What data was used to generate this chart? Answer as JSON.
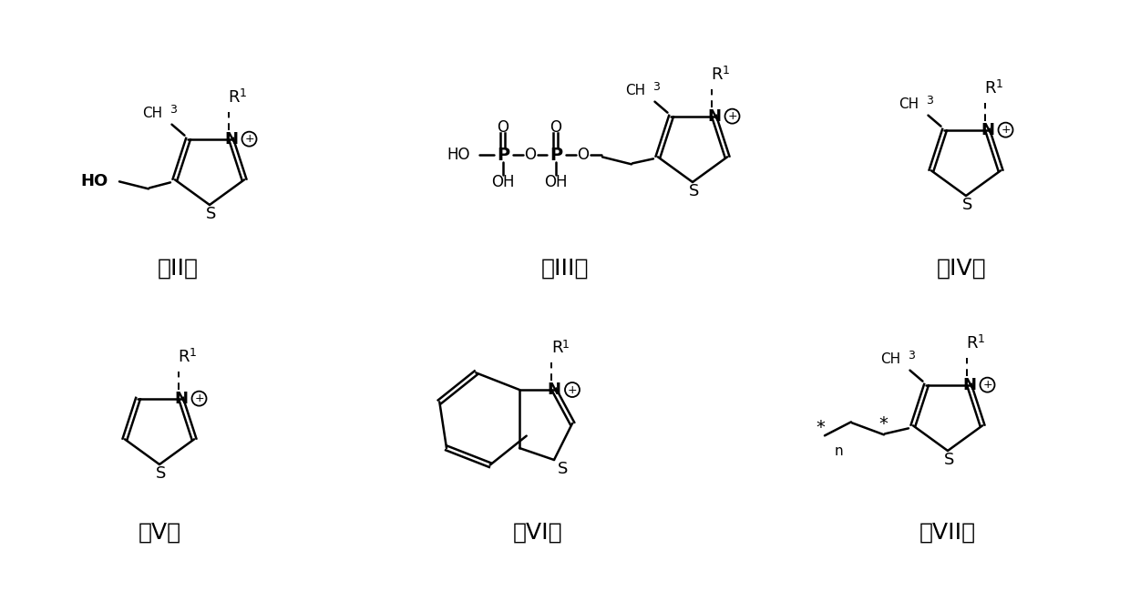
{
  "bg_color": "#ffffff",
  "lc": "#000000",
  "lw": 1.8,
  "labels": [
    "（II）",
    "（III）",
    "（IV）",
    "（V）",
    "（VI）",
    "（VII）"
  ]
}
